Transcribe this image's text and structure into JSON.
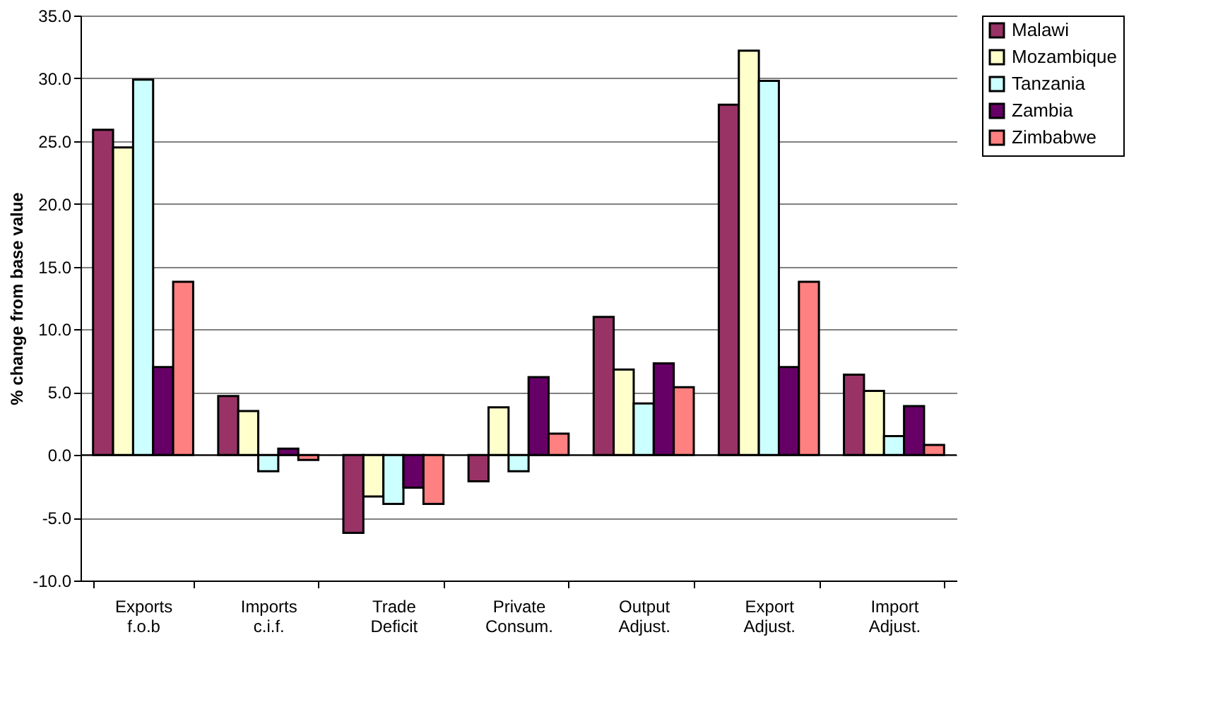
{
  "chart_data": {
    "type": "bar",
    "ylabel": "% change from base value",
    "categories": [
      "Exports f.o.b",
      "Imports c.i.f.",
      "Trade Deficit",
      "Private Consum.",
      "Output Adjust.",
      "Export Adjust.",
      "Import Adjust."
    ],
    "series": [
      {
        "name": "Malawi",
        "color": "#993366",
        "values": [
          25.9,
          4.7,
          -6.2,
          -2.1,
          11.0,
          27.9,
          6.4
        ]
      },
      {
        "name": "Mozambique",
        "color": "#ffffcc",
        "values": [
          24.5,
          3.5,
          -3.3,
          3.8,
          6.8,
          32.2,
          5.1
        ]
      },
      {
        "name": "Tanzania",
        "color": "#ccffff",
        "values": [
          29.9,
          -1.3,
          -3.9,
          -1.3,
          4.1,
          29.8,
          1.5
        ]
      },
      {
        "name": "Zambia",
        "color": "#660066",
        "values": [
          7.0,
          0.5,
          -2.6,
          6.2,
          7.3,
          7.0,
          3.9
        ]
      },
      {
        "name": "Zimbabwe",
        "color": "#ff8080",
        "values": [
          13.8,
          -0.4,
          -3.9,
          1.7,
          5.4,
          13.8,
          0.8
        ]
      }
    ],
    "ylim": [
      -10,
      35
    ],
    "yticks": [
      {
        "value": -10,
        "label": "-10.0"
      },
      {
        "value": -5,
        "label": "-5.0"
      },
      {
        "value": 0,
        "label": "0.0"
      },
      {
        "value": 5,
        "label": "5.0"
      },
      {
        "value": 10,
        "label": "10.0"
      },
      {
        "value": 15,
        "label": "15.0"
      },
      {
        "value": 20,
        "label": "20.0"
      },
      {
        "value": 25,
        "label": "25.0"
      },
      {
        "value": 30,
        "label": "30.0"
      },
      {
        "value": 35,
        "label": "35.0"
      }
    ],
    "grid": "y",
    "legend": "right"
  }
}
